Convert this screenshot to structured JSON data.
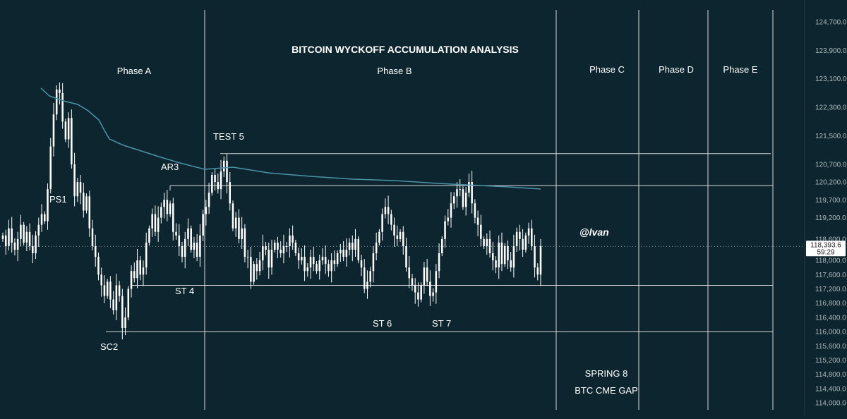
{
  "chart_data": {
    "type": "candlestick",
    "title": "BITCOIN WYCKOFF ACCUMULATION ANALYSIS",
    "watermark": "@lvan",
    "background_color": "#0d252e",
    "colors": {
      "candle": "#ffffff",
      "moving_average": "#4a93a8",
      "lines": "#d9d9d9",
      "axis_text": "#aeb8bc",
      "price_label_bg": "#ffffff",
      "price_label_text": "#222222"
    },
    "y_axis": {
      "side": "right",
      "ylim": [
        113800,
        124800
      ],
      "ticks": [
        "124,700.0",
        "123,900.0",
        "123,100.0",
        "122,300.0",
        "121,500.0",
        "120,700.0",
        "120,200.0",
        "119,700.0",
        "119,200.0",
        "118,600.0",
        "118,000.0",
        "117,600.0",
        "117,200.0",
        "116,800.0",
        "116,400.0",
        "116,000.0",
        "115,600.0",
        "115,200.0",
        "114,800.0",
        "114,400.0",
        "114,000.0"
      ]
    },
    "current_price": {
      "value": "118,393.6",
      "countdown": "59:29"
    },
    "phases": [
      "Phase A",
      "Phase B",
      "Phase C",
      "Phase D",
      "Phase E"
    ],
    "annotations": [
      "PS1",
      "SC2",
      "AR3",
      "ST 4",
      "TEST 5",
      "ST 6",
      "ST 7",
      "SPRING 8",
      "BTC CME GAP"
    ],
    "levels": [
      {
        "name": "TEST 5 high",
        "value": 121000
      },
      {
        "name": "AR3 / range resistance",
        "value": 120100
      },
      {
        "name": "range support",
        "value": 117300
      },
      {
        "name": "SC2 low",
        "value": 116000
      }
    ],
    "closes": [
      118700,
      118400,
      118900,
      118500,
      118300,
      118600,
      119000,
      118500,
      118800,
      118400,
      118200,
      118700,
      119000,
      119300,
      119100,
      120000,
      121200,
      122100,
      122800,
      122700,
      121900,
      121400,
      122000,
      120700,
      119800,
      120200,
      119900,
      119400,
      119800,
      118900,
      118400,
      118100,
      117600,
      117300,
      117000,
      117400,
      116900,
      116600,
      117300,
      117000,
      116100,
      116400,
      117200,
      117700,
      117500,
      118000,
      117600,
      117800,
      118500,
      118900,
      119300,
      118800,
      119200,
      119500,
      119700,
      119300,
      119600,
      118800,
      118700,
      118400,
      118100,
      118600,
      118900,
      118300,
      118500,
      118100,
      118700,
      119300,
      119500,
      119900,
      120400,
      120200,
      120000,
      120500,
      120800,
      120200,
      119600,
      118900,
      119200,
      118600,
      118900,
      118100,
      118100,
      117400,
      117900,
      117700,
      118000,
      118400,
      118300,
      117800,
      118300,
      118500,
      118300,
      118200,
      118400,
      118400,
      118700,
      118500,
      118200,
      118000,
      118100,
      117700,
      117800,
      118100,
      117900,
      117700,
      118000,
      118100,
      117900,
      117700,
      118000,
      117900,
      118200,
      118300,
      118100,
      118300,
      118500,
      118300,
      118600,
      118000,
      117800,
      117200,
      117400,
      117700,
      118200,
      118500,
      118800,
      119300,
      119500,
      119300,
      119000,
      118700,
      118600,
      118800,
      118400,
      117800,
      117500,
      117300,
      117100,
      116900,
      117300,
      117800,
      117400,
      117000,
      117100,
      117700,
      118200,
      118600,
      119100,
      119200,
      119600,
      119800,
      120000,
      120000,
      119500,
      119900,
      120200,
      119600,
      119200,
      119000,
      118600,
      118400,
      118600,
      118200,
      118000,
      117800,
      118500,
      117900,
      118400,
      118000,
      117800,
      118400,
      118800,
      118600,
      118300,
      118700,
      118900,
      118400,
      117800,
      117600,
      118400
    ]
  }
}
